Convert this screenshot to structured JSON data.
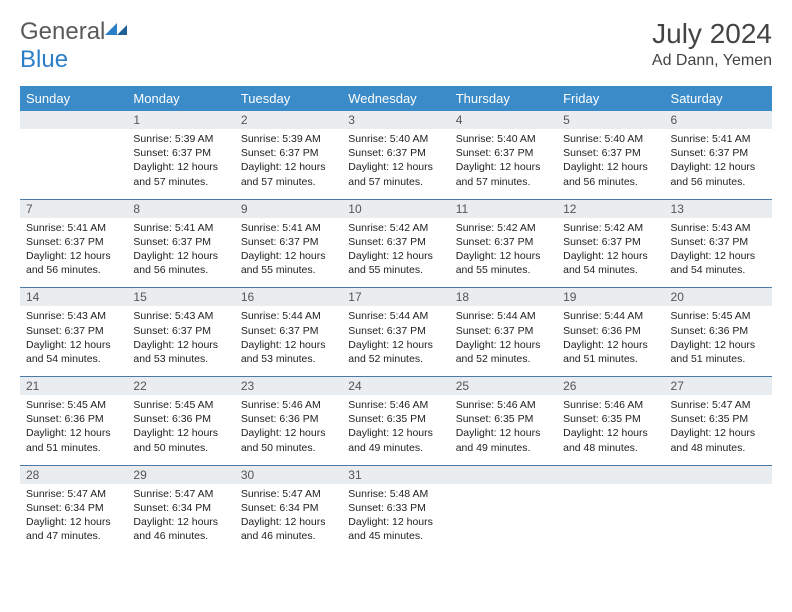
{
  "brand": {
    "part1": "General",
    "part2": "Blue"
  },
  "title": "July 2024",
  "location": "Ad Dann, Yemen",
  "colors": {
    "headerBg": "#3b8bc9",
    "headerText": "#ffffff",
    "dayNumBg": "#e9edf0",
    "rowBorder": "#4a7ba8",
    "logoBlue": "#2a7fc9",
    "logoGray": "#5a5a5a"
  },
  "weekdays": [
    "Sunday",
    "Monday",
    "Tuesday",
    "Wednesday",
    "Thursday",
    "Friday",
    "Saturday"
  ],
  "leadingBlanks": 1,
  "days": [
    {
      "n": 1,
      "sr": "5:39 AM",
      "ss": "6:37 PM",
      "dl": "12 hours and 57 minutes."
    },
    {
      "n": 2,
      "sr": "5:39 AM",
      "ss": "6:37 PM",
      "dl": "12 hours and 57 minutes."
    },
    {
      "n": 3,
      "sr": "5:40 AM",
      "ss": "6:37 PM",
      "dl": "12 hours and 57 minutes."
    },
    {
      "n": 4,
      "sr": "5:40 AM",
      "ss": "6:37 PM",
      "dl": "12 hours and 57 minutes."
    },
    {
      "n": 5,
      "sr": "5:40 AM",
      "ss": "6:37 PM",
      "dl": "12 hours and 56 minutes."
    },
    {
      "n": 6,
      "sr": "5:41 AM",
      "ss": "6:37 PM",
      "dl": "12 hours and 56 minutes."
    },
    {
      "n": 7,
      "sr": "5:41 AM",
      "ss": "6:37 PM",
      "dl": "12 hours and 56 minutes."
    },
    {
      "n": 8,
      "sr": "5:41 AM",
      "ss": "6:37 PM",
      "dl": "12 hours and 56 minutes."
    },
    {
      "n": 9,
      "sr": "5:41 AM",
      "ss": "6:37 PM",
      "dl": "12 hours and 55 minutes."
    },
    {
      "n": 10,
      "sr": "5:42 AM",
      "ss": "6:37 PM",
      "dl": "12 hours and 55 minutes."
    },
    {
      "n": 11,
      "sr": "5:42 AM",
      "ss": "6:37 PM",
      "dl": "12 hours and 55 minutes."
    },
    {
      "n": 12,
      "sr": "5:42 AM",
      "ss": "6:37 PM",
      "dl": "12 hours and 54 minutes."
    },
    {
      "n": 13,
      "sr": "5:43 AM",
      "ss": "6:37 PM",
      "dl": "12 hours and 54 minutes."
    },
    {
      "n": 14,
      "sr": "5:43 AM",
      "ss": "6:37 PM",
      "dl": "12 hours and 54 minutes."
    },
    {
      "n": 15,
      "sr": "5:43 AM",
      "ss": "6:37 PM",
      "dl": "12 hours and 53 minutes."
    },
    {
      "n": 16,
      "sr": "5:44 AM",
      "ss": "6:37 PM",
      "dl": "12 hours and 53 minutes."
    },
    {
      "n": 17,
      "sr": "5:44 AM",
      "ss": "6:37 PM",
      "dl": "12 hours and 52 minutes."
    },
    {
      "n": 18,
      "sr": "5:44 AM",
      "ss": "6:37 PM",
      "dl": "12 hours and 52 minutes."
    },
    {
      "n": 19,
      "sr": "5:44 AM",
      "ss": "6:36 PM",
      "dl": "12 hours and 51 minutes."
    },
    {
      "n": 20,
      "sr": "5:45 AM",
      "ss": "6:36 PM",
      "dl": "12 hours and 51 minutes."
    },
    {
      "n": 21,
      "sr": "5:45 AM",
      "ss": "6:36 PM",
      "dl": "12 hours and 51 minutes."
    },
    {
      "n": 22,
      "sr": "5:45 AM",
      "ss": "6:36 PM",
      "dl": "12 hours and 50 minutes."
    },
    {
      "n": 23,
      "sr": "5:46 AM",
      "ss": "6:36 PM",
      "dl": "12 hours and 50 minutes."
    },
    {
      "n": 24,
      "sr": "5:46 AM",
      "ss": "6:35 PM",
      "dl": "12 hours and 49 minutes."
    },
    {
      "n": 25,
      "sr": "5:46 AM",
      "ss": "6:35 PM",
      "dl": "12 hours and 49 minutes."
    },
    {
      "n": 26,
      "sr": "5:46 AM",
      "ss": "6:35 PM",
      "dl": "12 hours and 48 minutes."
    },
    {
      "n": 27,
      "sr": "5:47 AM",
      "ss": "6:35 PM",
      "dl": "12 hours and 48 minutes."
    },
    {
      "n": 28,
      "sr": "5:47 AM",
      "ss": "6:34 PM",
      "dl": "12 hours and 47 minutes."
    },
    {
      "n": 29,
      "sr": "5:47 AM",
      "ss": "6:34 PM",
      "dl": "12 hours and 46 minutes."
    },
    {
      "n": 30,
      "sr": "5:47 AM",
      "ss": "6:34 PM",
      "dl": "12 hours and 46 minutes."
    },
    {
      "n": 31,
      "sr": "5:48 AM",
      "ss": "6:33 PM",
      "dl": "12 hours and 45 minutes."
    }
  ],
  "labels": {
    "sunrise": "Sunrise:",
    "sunset": "Sunset:",
    "daylight": "Daylight:"
  }
}
